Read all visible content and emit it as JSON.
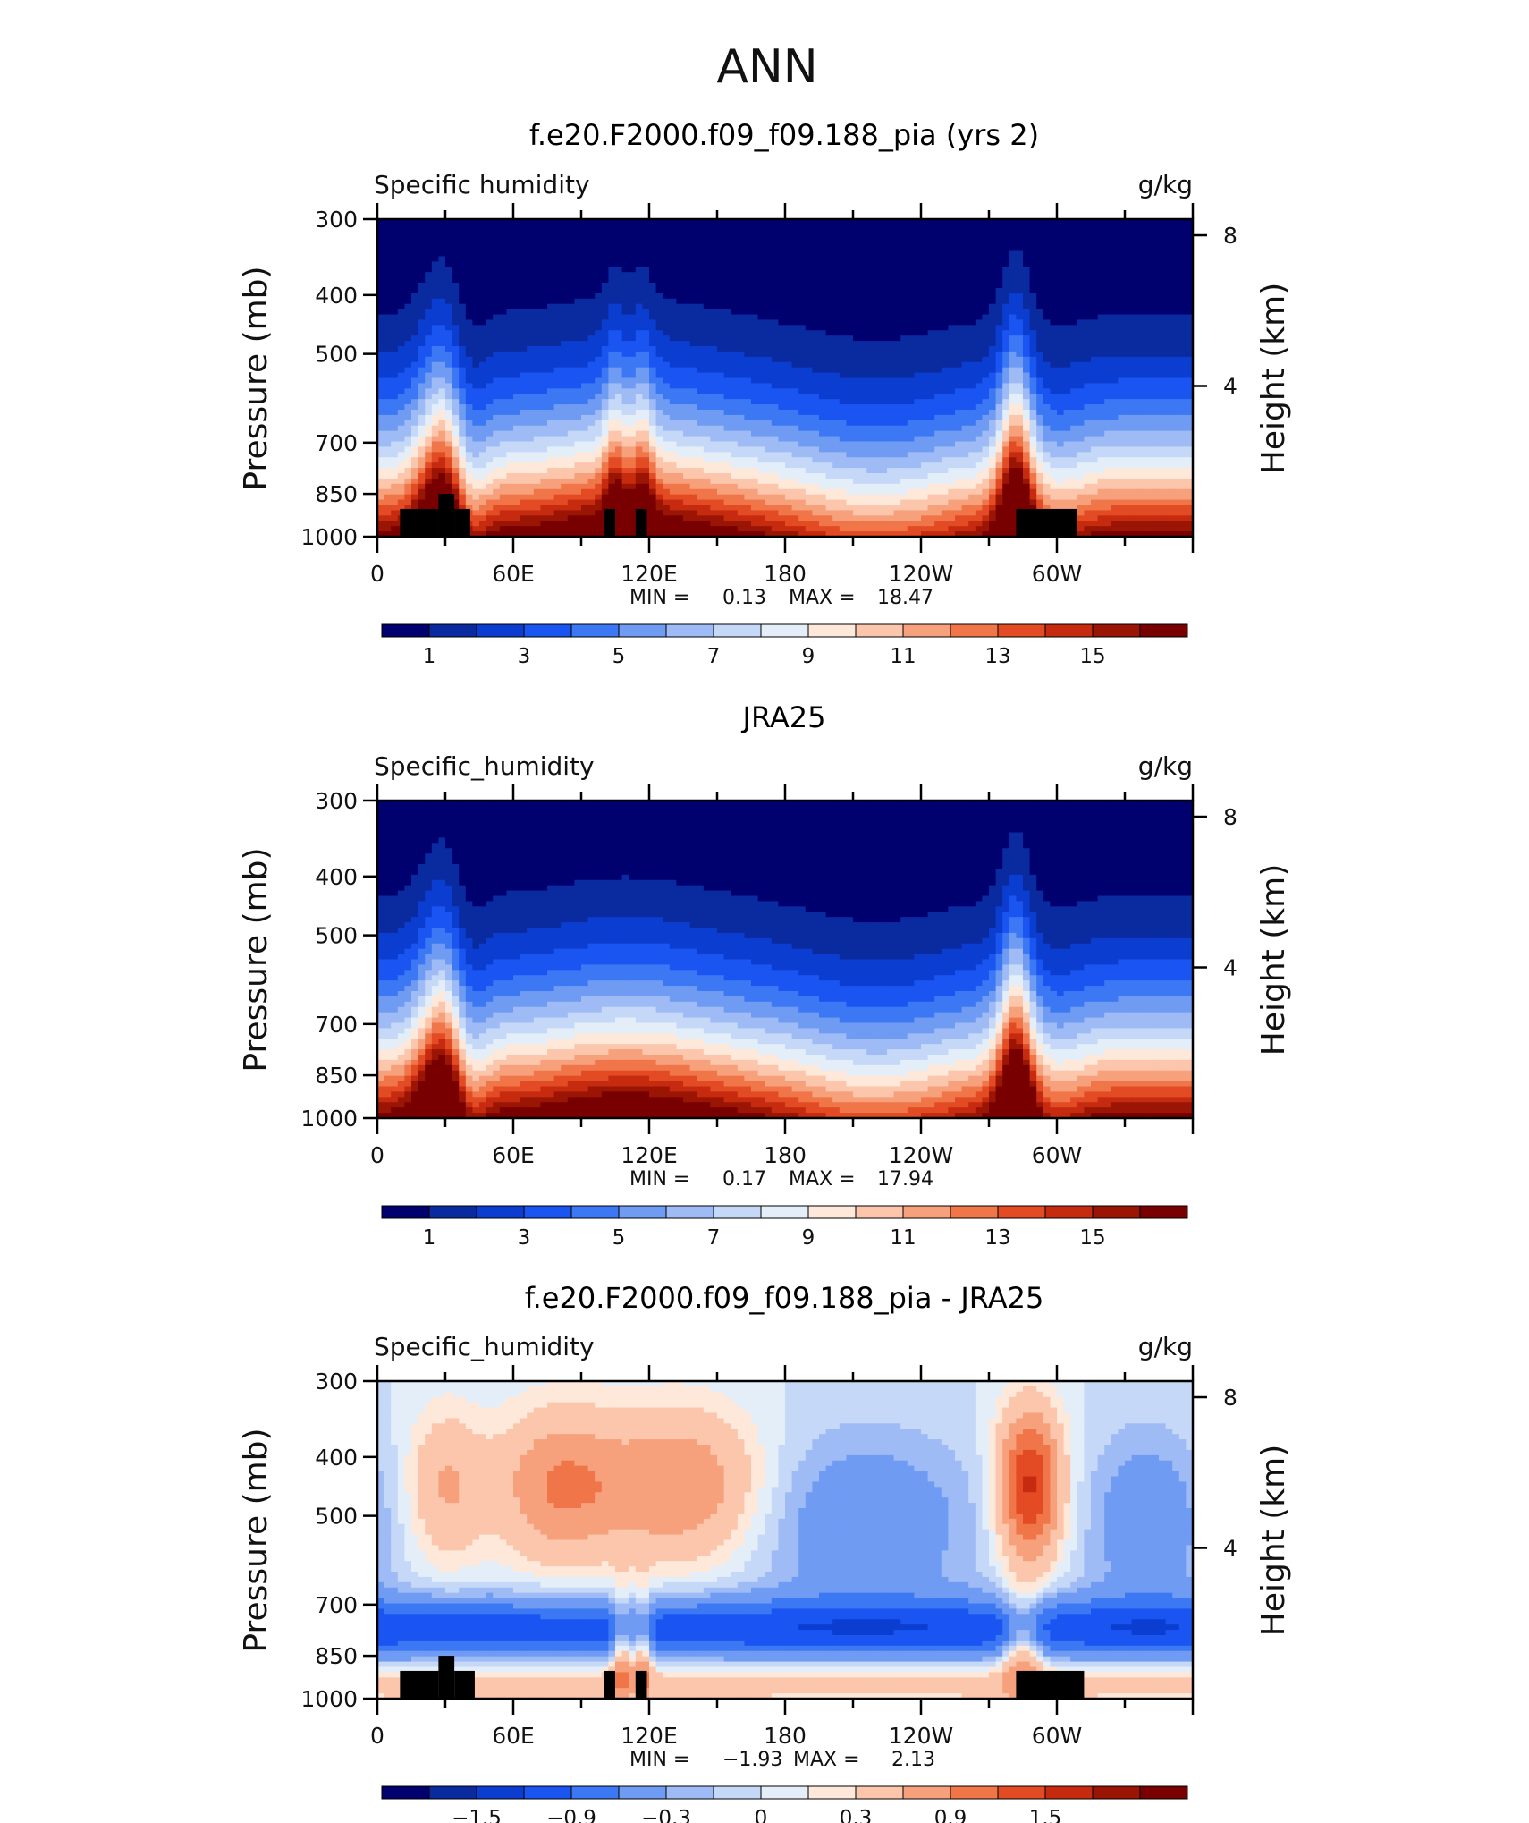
{
  "figure_title": "ANN",
  "colors": {
    "diverging": [
      "#00006e",
      "#0a2aa0",
      "#0b3ed0",
      "#1a55f2",
      "#3c78f4",
      "#6f9bf3",
      "#9ebbf5",
      "#c6d8f7",
      "#e3eef9",
      "#fde8da",
      "#fbc6ab",
      "#f7a07c",
      "#f07649",
      "#e24b24",
      "#c62b0f",
      "#9b1505",
      "#790000"
    ]
  },
  "chart_data": [
    {
      "type": "heatmap",
      "title": "f.e20.F2000.f09_f09.188_pia (yrs 2)",
      "left_label": "Specific humidity",
      "units": "g/kg",
      "ylabel": "Pressure (mb)",
      "y2label": "Height (km)",
      "y_ticks": [
        300,
        400,
        500,
        700,
        850,
        1000
      ],
      "y2_ticks": [
        8,
        4
      ],
      "x_ticks": [
        "0",
        "60E",
        "120E",
        "180",
        "120W",
        "60W"
      ],
      "xlim": [
        0,
        360
      ],
      "ylim": [
        1000,
        300
      ],
      "stats": {
        "min_label": "MIN =",
        "min": "0.13",
        "max_label": "MAX =",
        "max": "18.47"
      },
      "colorbar_labels": [
        "1",
        "3",
        "5",
        "7",
        "9",
        "11",
        "13",
        "15"
      ],
      "field": "model",
      "topography": [
        [
          10,
          27,
          900
        ],
        [
          27,
          34,
          850
        ],
        [
          34,
          41,
          900
        ],
        [
          100,
          105,
          900
        ],
        [
          114,
          119,
          900
        ],
        [
          282,
          309,
          900
        ]
      ]
    },
    {
      "type": "heatmap",
      "title": "JRA25",
      "left_label": "Specific_humidity",
      "units": "g/kg",
      "ylabel": "Pressure (mb)",
      "y2label": "Height (km)",
      "y_ticks": [
        300,
        400,
        500,
        700,
        850,
        1000
      ],
      "y2_ticks": [
        8,
        4
      ],
      "x_ticks": [
        "0",
        "60E",
        "120E",
        "180",
        "120W",
        "60W"
      ],
      "xlim": [
        0,
        360
      ],
      "ylim": [
        1000,
        300
      ],
      "stats": {
        "min_label": "MIN =",
        "min": "0.17",
        "max_label": "MAX =",
        "max": "17.94"
      },
      "colorbar_labels": [
        "1",
        "3",
        "5",
        "7",
        "9",
        "11",
        "13",
        "15"
      ],
      "field": "obs",
      "topography": []
    },
    {
      "type": "heatmap",
      "title": "f.e20.F2000.f09_f09.188_pia - JRA25",
      "left_label": "Specific_humidity",
      "units": "g/kg",
      "ylabel": "Pressure (mb)",
      "y2label": "Height (km)",
      "y_ticks": [
        300,
        400,
        500,
        700,
        850,
        1000
      ],
      "y2_ticks": [
        8,
        4
      ],
      "x_ticks": [
        "0",
        "60E",
        "120E",
        "180",
        "120W",
        "60W"
      ],
      "xlim": [
        0,
        360
      ],
      "ylim": [
        1000,
        300
      ],
      "stats": {
        "min_label": "MIN =",
        "min": "−1.93",
        "max_label": "MAX =",
        "max": "2.13"
      },
      "colorbar_labels": [
        "−1.5",
        "−0.9",
        "−0.3",
        "0",
        "0.3",
        "0.9",
        "1.5"
      ],
      "field": "diff",
      "topography": [
        [
          10,
          27,
          900
        ],
        [
          27,
          34,
          850
        ],
        [
          34,
          43,
          900
        ],
        [
          100,
          105,
          900
        ],
        [
          114,
          119,
          900
        ],
        [
          282,
          312,
          900
        ]
      ]
    }
  ]
}
